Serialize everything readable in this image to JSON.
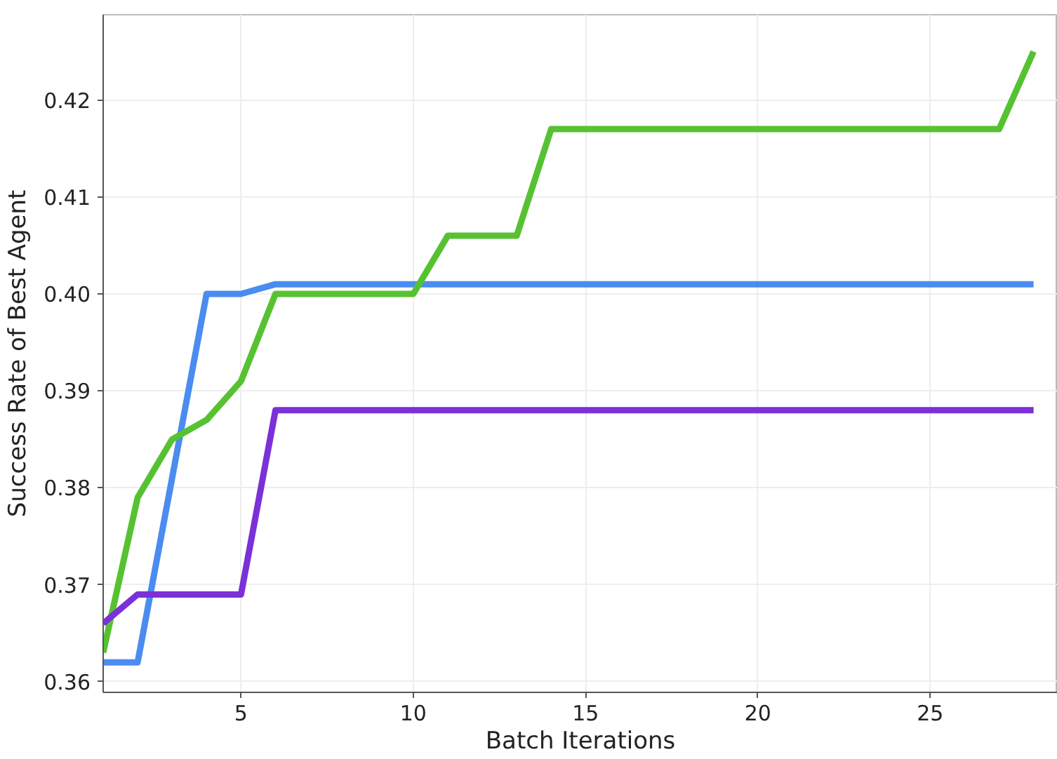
{
  "chart_data": {
    "type": "line",
    "xlabel": "Batch Iterations",
    "ylabel": "Success Rate of Best Agent",
    "x": [
      1,
      2,
      3,
      4,
      5,
      6,
      7,
      8,
      9,
      10,
      11,
      12,
      13,
      14,
      15,
      16,
      17,
      18,
      19,
      20,
      21,
      22,
      23,
      24,
      25,
      26,
      27,
      28
    ],
    "series": [
      {
        "color": "#4a8cf0",
        "values": [
          0.362,
          0.362,
          0.381,
          0.4,
          0.4,
          0.401,
          0.401,
          0.401,
          0.401,
          0.401,
          0.401,
          0.401,
          0.401,
          0.401,
          0.401,
          0.401,
          0.401,
          0.401,
          0.401,
          0.401,
          0.401,
          0.401,
          0.401,
          0.401,
          0.401,
          0.401,
          0.401,
          0.401
        ]
      },
      {
        "color": "#56c232",
        "values": [
          0.363,
          0.379,
          0.385,
          0.387,
          0.391,
          0.4,
          0.4,
          0.4,
          0.4,
          0.4,
          0.406,
          0.406,
          0.406,
          0.417,
          0.417,
          0.417,
          0.417,
          0.417,
          0.417,
          0.417,
          0.417,
          0.417,
          0.417,
          0.417,
          0.417,
          0.417,
          0.417,
          0.425
        ]
      },
      {
        "color": "#7b30d8",
        "values": [
          0.366,
          0.369,
          0.369,
          0.369,
          0.369,
          0.388,
          0.388,
          0.388,
          0.388,
          0.388,
          0.388,
          0.388,
          0.388,
          0.388,
          0.388,
          0.388,
          0.388,
          0.388,
          0.388,
          0.388,
          0.388,
          0.388,
          0.388,
          0.388,
          0.388,
          0.388,
          0.388,
          0.388
        ]
      }
    ],
    "xlim": [
      1,
      28.7
    ],
    "ylim": [
      0.3589,
      0.4288
    ],
    "xticks": [
      5,
      10,
      15,
      20,
      25
    ],
    "yticks": [
      {
        "value": 0.36,
        "label": "0.36"
      },
      {
        "value": 0.37,
        "label": "0.37"
      },
      {
        "value": 0.38,
        "label": "0.38"
      },
      {
        "value": 0.39,
        "label": "0.39"
      },
      {
        "value": 0.4,
        "label": "0.40"
      },
      {
        "value": 0.41,
        "label": "0.41"
      },
      {
        "value": 0.42,
        "label": "0.42"
      }
    ],
    "grid": true,
    "line_style": "solid",
    "marker": "none"
  }
}
